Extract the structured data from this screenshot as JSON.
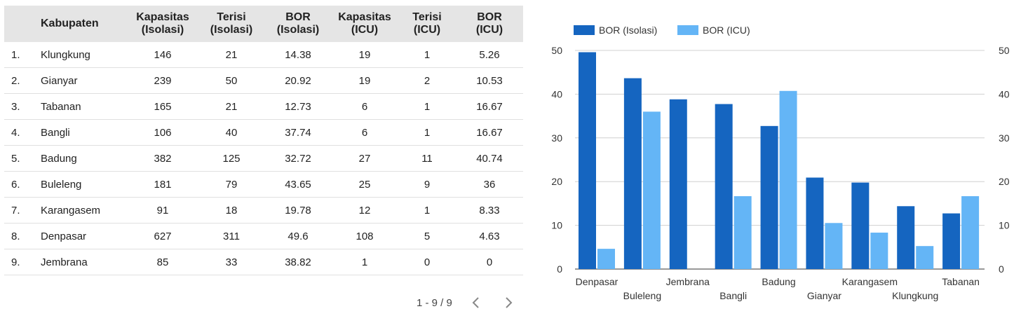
{
  "table": {
    "columns": [
      "",
      "Kabupaten",
      "Kapasitas\n(Isolasi)",
      "Terisi\n(Isolasi)",
      "BOR\n(Isolasi)",
      "Kapasitas\n(ICU)",
      "Terisi\n(ICU)",
      "BOR\n(ICU)"
    ],
    "rows": [
      [
        "1.",
        "Klungkung",
        "146",
        "21",
        "14.38",
        "19",
        "1",
        "5.26"
      ],
      [
        "2.",
        "Gianyar",
        "239",
        "50",
        "20.92",
        "19",
        "2",
        "10.53"
      ],
      [
        "3.",
        "Tabanan",
        "165",
        "21",
        "12.73",
        "6",
        "1",
        "16.67"
      ],
      [
        "4.",
        "Bangli",
        "106",
        "40",
        "37.74",
        "6",
        "1",
        "16.67"
      ],
      [
        "5.",
        "Badung",
        "382",
        "125",
        "32.72",
        "27",
        "11",
        "40.74"
      ],
      [
        "6.",
        "Buleleng",
        "181",
        "79",
        "43.65",
        "25",
        "9",
        "36"
      ],
      [
        "7.",
        "Karangasem",
        "91",
        "18",
        "19.78",
        "12",
        "1",
        "8.33"
      ],
      [
        "8.",
        "Denpasar",
        "627",
        "311",
        "49.6",
        "108",
        "5",
        "4.63"
      ],
      [
        "9.",
        "Jembrana",
        "85",
        "33",
        "38.82",
        "1",
        "0",
        "0"
      ]
    ]
  },
  "pager": {
    "range": "1 - 9 / 9",
    "prev_icon": "chevron-left-icon",
    "next_icon": "chevron-right-icon"
  },
  "chart_data": {
    "type": "bar",
    "categories": [
      "Denpasar",
      "Buleleng",
      "Jembrana",
      "Bangli",
      "Badung",
      "Gianyar",
      "Karangasem",
      "Klungkung",
      "Tabanan"
    ],
    "series": [
      {
        "name": "BOR (Isolasi)",
        "color": "#1565c0",
        "values": [
          49.6,
          43.65,
          38.82,
          37.74,
          32.72,
          20.92,
          19.78,
          14.38,
          12.73
        ]
      },
      {
        "name": "BOR (ICU)",
        "color": "#64b5f6",
        "values": [
          4.63,
          36,
          0,
          16.67,
          40.74,
          10.53,
          8.33,
          5.26,
          16.67
        ]
      }
    ],
    "ylim": [
      0,
      50
    ],
    "yticks": [
      0,
      10,
      20,
      30,
      40,
      50
    ],
    "legend": "top-left",
    "grid": true
  }
}
